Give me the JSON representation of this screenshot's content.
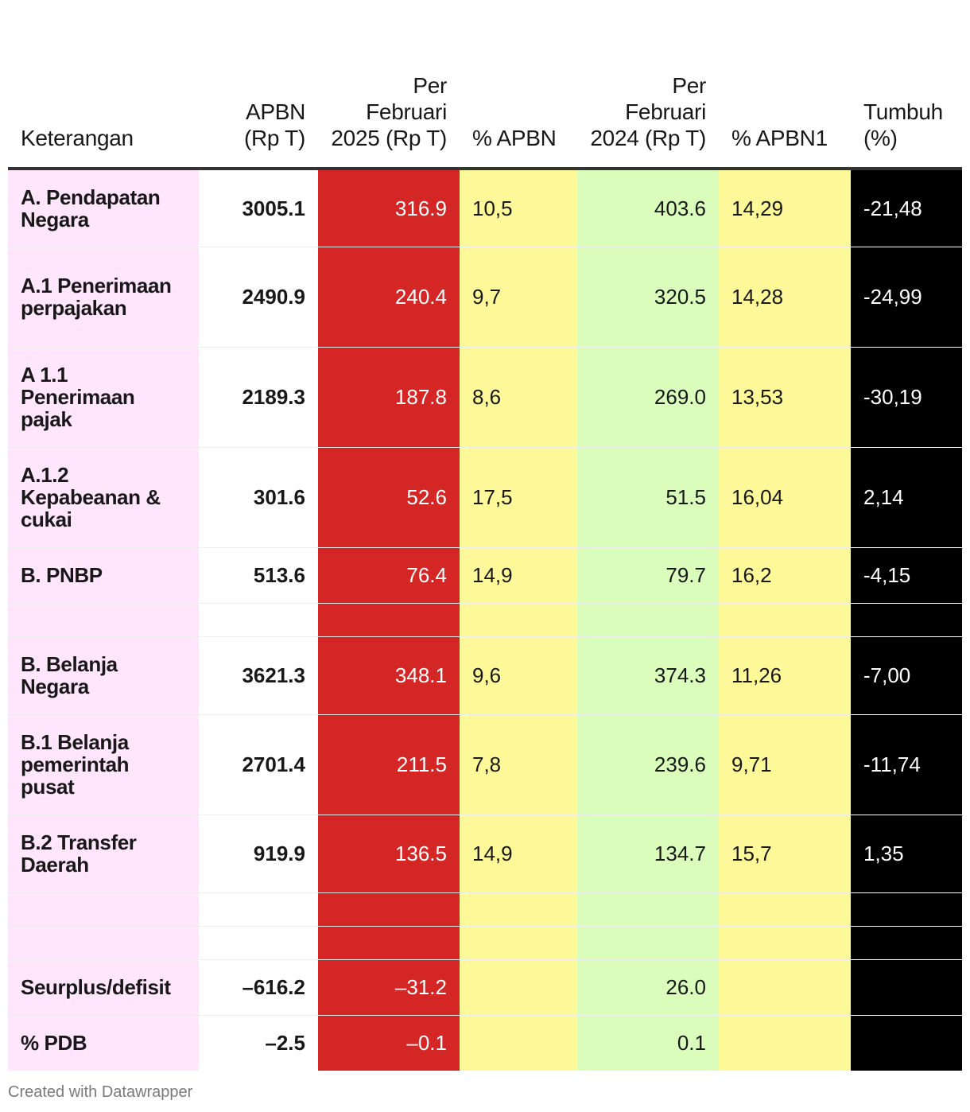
{
  "chart_data": {
    "type": "table",
    "columns": [
      "Keterangan",
      "APBN (Rp T)",
      "Per Februari 2025 (Rp T)",
      "% APBN",
      "Per Februari 2024 (Rp T)",
      "% APBN1",
      "Tumbuh (%)"
    ],
    "rows": [
      {
        "label": "A. Pendapatan Negara",
        "apbn": "3005.1",
        "feb2025": "316.9",
        "pct_apbn": "10,5",
        "feb2024": "403.6",
        "pct_apbn1": "14,29",
        "tumbuh": "-21,48"
      },
      {
        "label": "A.1 Penerimaan perpajakan",
        "apbn": "2490.9",
        "feb2025": "240.4",
        "pct_apbn": "9,7",
        "feb2024": "320.5",
        "pct_apbn1": "14,28",
        "tumbuh": "-24,99"
      },
      {
        "label": "A 1.1 Penerimaan pajak",
        "apbn": "2189.3",
        "feb2025": "187.8",
        "pct_apbn": "8,6",
        "feb2024": "269.0",
        "pct_apbn1": "13,53",
        "tumbuh": "-30,19"
      },
      {
        "label": "A.1.2 Kepabeanan & cukai",
        "apbn": "301.6",
        "feb2025": "52.6",
        "pct_apbn": "17,5",
        "feb2024": "51.5",
        "pct_apbn1": "16,04",
        "tumbuh": "2,14"
      },
      {
        "label": "B. PNBP",
        "apbn": "513.6",
        "feb2025": "76.4",
        "pct_apbn": "14,9",
        "feb2024": "79.7",
        "pct_apbn1": "16,2",
        "tumbuh": "-4,15"
      },
      {
        "label": "",
        "apbn": "",
        "feb2025": "",
        "pct_apbn": "",
        "feb2024": "",
        "pct_apbn1": "",
        "tumbuh": ""
      },
      {
        "label": "B. Belanja Negara",
        "apbn": "3621.3",
        "feb2025": "348.1",
        "pct_apbn": "9,6",
        "feb2024": "374.3",
        "pct_apbn1": "11,26",
        "tumbuh": "-7,00"
      },
      {
        "label": "B.1 Belanja pemerintah pusat",
        "apbn": "2701.4",
        "feb2025": "211.5",
        "pct_apbn": "7,8",
        "feb2024": "239.6",
        "pct_apbn1": "9,71",
        "tumbuh": "-11,74"
      },
      {
        "label": "B.2 Transfer Daerah",
        "apbn": "919.9",
        "feb2025": "136.5",
        "pct_apbn": "14,9",
        "feb2024": "134.7",
        "pct_apbn1": "15,7",
        "tumbuh": "1,35"
      },
      {
        "label": "",
        "apbn": "",
        "feb2025": "",
        "pct_apbn": "",
        "feb2024": "",
        "pct_apbn1": "",
        "tumbuh": ""
      },
      {
        "label": "",
        "apbn": "",
        "feb2025": "",
        "pct_apbn": "",
        "feb2024": "",
        "pct_apbn1": "",
        "tumbuh": ""
      },
      {
        "label": "Seurplus/defisit",
        "apbn": "–616.2",
        "feb2025": "–31.2",
        "pct_apbn": "",
        "feb2024": "26.0",
        "pct_apbn1": "",
        "tumbuh": ""
      },
      {
        "label": "% PDB",
        "apbn": "–2.5",
        "feb2025": "–0.1",
        "pct_apbn": "",
        "feb2024": "0.1",
        "pct_apbn1": "",
        "tumbuh": ""
      }
    ],
    "column_colors": {
      "Keterangan": "#ffe6fd",
      "APBN (Rp T)": "#ffffff",
      "Per Februari 2025 (Rp T)": "#d52626",
      "% APBN": "#fdf998",
      "Per Februari 2024 (Rp T)": "#dafdbc",
      "% APBN1": "#fdf998",
      "Tumbuh (%)": "#000000"
    }
  },
  "header": {
    "keterangan": "Keterangan",
    "apbn": "APBN (Rp T)",
    "feb2025": "Per Februari 2025 (Rp T)",
    "pct_apbn": "% APBN",
    "feb2024": "Per Februari 2024 (Rp T)",
    "pct_apbn1": "% APBN1",
    "tumbuh": "Tumbuh (%)"
  },
  "footer": {
    "credit": "Created with Datawrapper"
  }
}
